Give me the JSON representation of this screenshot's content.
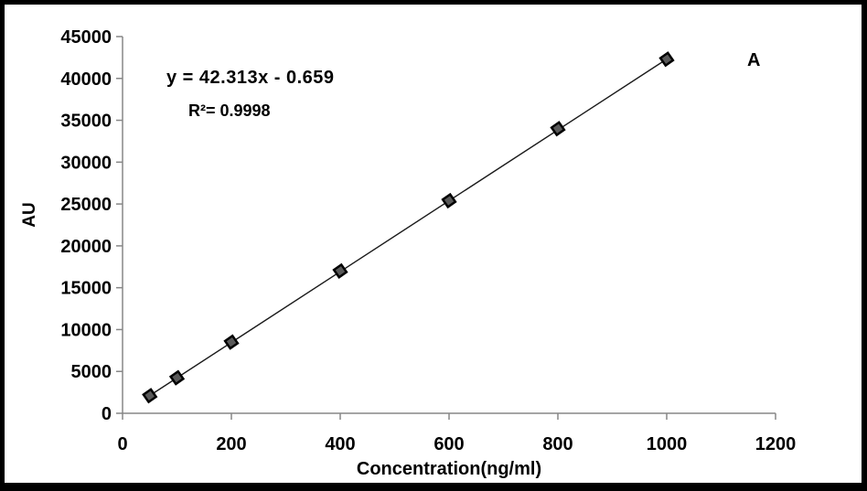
{
  "frame": {
    "background": "#ffffff",
    "border_color": "#000000"
  },
  "chart_data": {
    "type": "scatter",
    "panel_label": "A",
    "xlabel": "Concentration(ng/ml)",
    "ylabel": "AU",
    "x": [
      50,
      100,
      200,
      400,
      600,
      800,
      1000
    ],
    "y": [
      2100,
      4250,
      8500,
      17000,
      25400,
      34000,
      42300
    ],
    "trendline": {
      "equation": "y = 42.313x - 0.659",
      "r2_label": "R²= 0.9998",
      "slope": 42.313,
      "intercept": -0.659,
      "color": "#1a1a1a"
    },
    "xlim": [
      0,
      1200
    ],
    "ylim": [
      0,
      45000
    ],
    "x_ticks": [
      0,
      200,
      400,
      600,
      800,
      1000,
      1200
    ],
    "y_ticks": [
      0,
      5000,
      10000,
      15000,
      20000,
      25000,
      30000,
      35000,
      40000,
      45000
    ],
    "grid": false,
    "legend": "none",
    "marker": {
      "shape": "diamond",
      "fill": "#595959",
      "stroke": "#000000"
    },
    "axis_color": "#878787",
    "text_color": "#000000"
  }
}
